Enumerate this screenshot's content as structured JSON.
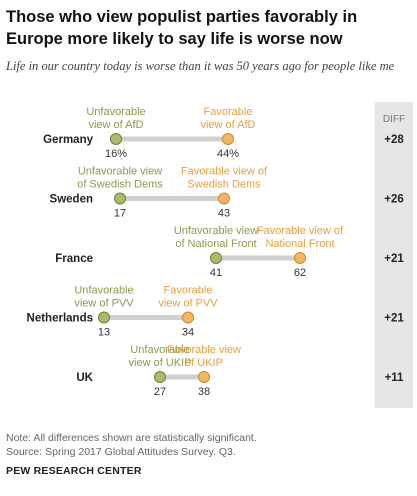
{
  "title": "Those who view populist parties favorably in Europe more likely to say life is worse now",
  "subtitle": "Life in our country today is worse than it was 50 years ago for people like me",
  "note": "Note: All differences shown are statistically significant.",
  "source": "Source: Spring 2017 Global Attitudes Survey. Q3.",
  "brand": "PEW RESEARCH CENTER",
  "colors": {
    "unfavorable": "#a7bb6b",
    "favorable": "#f5b664",
    "unfavorable_text": "#8a9c4f",
    "favorable_text": "#ec9f3d",
    "bar": "#cfcfcf",
    "diff_panel": "#e6e6e6"
  },
  "chart_data": {
    "type": "dot",
    "diff_header": "DIFF",
    "xlim": [
      0,
      100
    ],
    "series": [
      {
        "name": "Unfavorable",
        "key": "unfavorable"
      },
      {
        "name": "Favorable",
        "key": "favorable"
      }
    ],
    "rows": [
      {
        "country": "Germany",
        "unfavorable": 16,
        "favorable": 44,
        "diff": "+28",
        "unfavorable_label": [
          "16%"
        ],
        "favorable_label": [
          "44%"
        ],
        "unfavorable_caption": [
          "Unfavorable",
          "view of AfD"
        ],
        "favorable_caption": [
          "Favorable",
          "view of AfD"
        ]
      },
      {
        "country": "Sweden",
        "unfavorable": 17,
        "favorable": 43,
        "diff": "+26",
        "unfavorable_label": [
          "17"
        ],
        "favorable_label": [
          "43"
        ],
        "unfavorable_caption": [
          "Unfavorable view",
          "of Swedish Dems"
        ],
        "favorable_caption": [
          "Favorable view of",
          "Swedish Dems"
        ]
      },
      {
        "country": "France",
        "unfavorable": 41,
        "favorable": 62,
        "diff": "+21",
        "unfavorable_label": [
          "41"
        ],
        "favorable_label": [
          "62"
        ],
        "unfavorable_caption": [
          "Unfavorable view",
          "of National Front"
        ],
        "favorable_caption": [
          "Favorable view of",
          "National Front"
        ]
      },
      {
        "country": "Netherlands",
        "unfavorable": 13,
        "favorable": 34,
        "diff": "+21",
        "unfavorable_label": [
          "13"
        ],
        "favorable_label": [
          "34"
        ],
        "unfavorable_caption": [
          "Unfavorable",
          "view of PVV"
        ],
        "favorable_caption": [
          "Favorable",
          "view of PVV"
        ]
      },
      {
        "country": "UK",
        "unfavorable": 27,
        "favorable": 38,
        "diff": "+11",
        "unfavorable_label": [
          "27"
        ],
        "favorable_label": [
          "38"
        ],
        "unfavorable_caption": [
          "Unfavorable",
          "view of UKIP"
        ],
        "favorable_caption": [
          "Favorable view",
          "of UKIP"
        ]
      }
    ]
  }
}
